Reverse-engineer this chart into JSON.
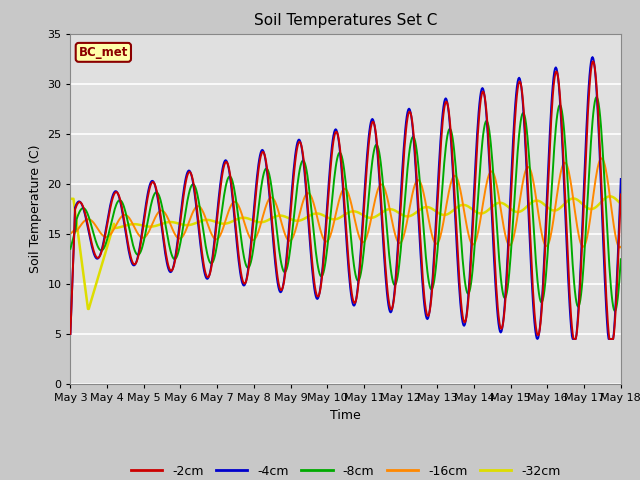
{
  "title": "Soil Temperatures Set C",
  "xlabel": "Time",
  "ylabel": "Soil Temperature (C)",
  "ylim": [
    0,
    35
  ],
  "label_text": "BC_met",
  "legend_entries": [
    "-2cm",
    "-4cm",
    "-8cm",
    "-16cm",
    "-32cm"
  ],
  "legend_colors": [
    "#cc0000",
    "#0000cc",
    "#00aa00",
    "#ff8800",
    "#dddd00"
  ],
  "tick_labels": [
    "May 3",
    "May 4",
    "May 5",
    "May 6",
    "May 7",
    "May 8",
    "May 9",
    "May 10",
    "May 11",
    "May 12",
    "May 13",
    "May 14",
    "May 15",
    "May 16",
    "May 17",
    "May 18"
  ],
  "title_fontsize": 11,
  "fig_bg": "#c8c8c8",
  "plot_bg": "#e0e0e0",
  "grid_color": "#ffffff"
}
